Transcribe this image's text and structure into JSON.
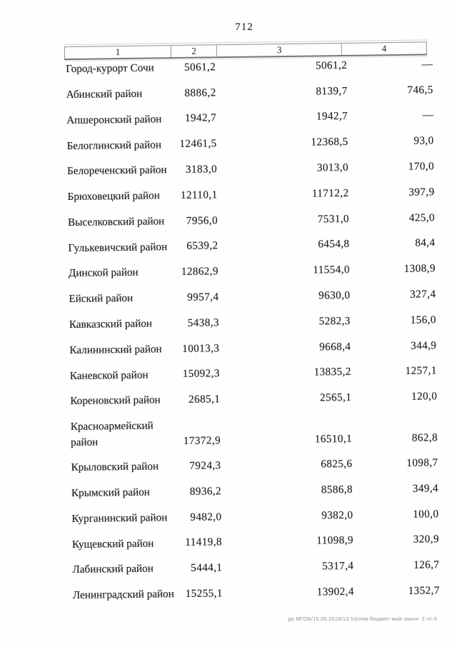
{
  "page": {
    "number": "712",
    "top_artifact": "· ·",
    "footer_note": "до МГОБ/15.05.2018/13.53/изм-бюджет-май-закон- 2 чт-5"
  },
  "table": {
    "headers": [
      "1",
      "2",
      "3",
      "4"
    ],
    "rows": [
      {
        "name": "Город-курорт Сочи",
        "col2": "5061,2",
        "col3": "5061,2",
        "col4": "—"
      },
      {
        "name": "Абинский район",
        "col2": "8886,2",
        "col3": "8139,7",
        "col4": "746,5"
      },
      {
        "name": "Апшеронский район",
        "col2": "1942,7",
        "col3": "1942,7",
        "col4": "—"
      },
      {
        "name": "Белоглинский район",
        "col2": "12461,5",
        "col3": "12368,5",
        "col4": "93,0"
      },
      {
        "name": "Белореченский район",
        "col2": "3183,0",
        "col3": "3013,0",
        "col4": "170,0"
      },
      {
        "name": "Брюховецкий район",
        "col2": "12110,1",
        "col3": "11712,2",
        "col4": "397,9"
      },
      {
        "name": "Выселковский район",
        "col2": "7956,0",
        "col3": "7531,0",
        "col4": "425,0"
      },
      {
        "name": "Гулькевичский район",
        "col2": "6539,2",
        "col3": "6454,8",
        "col4": "84,4"
      },
      {
        "name": "Динской район",
        "col2": "12862,9",
        "col3": "11554,0",
        "col4": "1308,9"
      },
      {
        "name": "Ейский район",
        "col2": "9957,4",
        "col3": "9630,0",
        "col4": "327,4"
      },
      {
        "name": "Кавказский район",
        "col2": "5438,3",
        "col3": "5282,3",
        "col4": "156,0"
      },
      {
        "name": "Калининский район",
        "col2": "10013,3",
        "col3": "9668,4",
        "col4": "344,9"
      },
      {
        "name": "Каневской район",
        "col2": "15092,3",
        "col3": "13835,2",
        "col4": "1257,1"
      },
      {
        "name": "Кореновский район",
        "col2": "2685,1",
        "col3": "2565,1",
        "col4": "120,0"
      },
      {
        "name": "Красноармейский район",
        "col2": "17372,9",
        "col3": "16510,1",
        "col4": "862,8"
      },
      {
        "name": "Крыловский район",
        "col2": "7924,3",
        "col3": "6825,6",
        "col4": "1098,7"
      },
      {
        "name": "Крымский район",
        "col2": "8936,2",
        "col3": "8586,8",
        "col4": "349,4"
      },
      {
        "name": "Курганинский район",
        "col2": "9482,0",
        "col3": "9382,0",
        "col4": "100,0"
      },
      {
        "name": "Кущевский район",
        "col2": "11419,8",
        "col3": "11098,9",
        "col4": "320,9"
      },
      {
        "name": "Лабинский район",
        "col2": "5444,1",
        "col3": "5317,4",
        "col4": "126,7"
      },
      {
        "name": "Ленинградский район",
        "col2": "15255,1",
        "col3": "13902,4",
        "col4": "1352,7"
      }
    ]
  }
}
